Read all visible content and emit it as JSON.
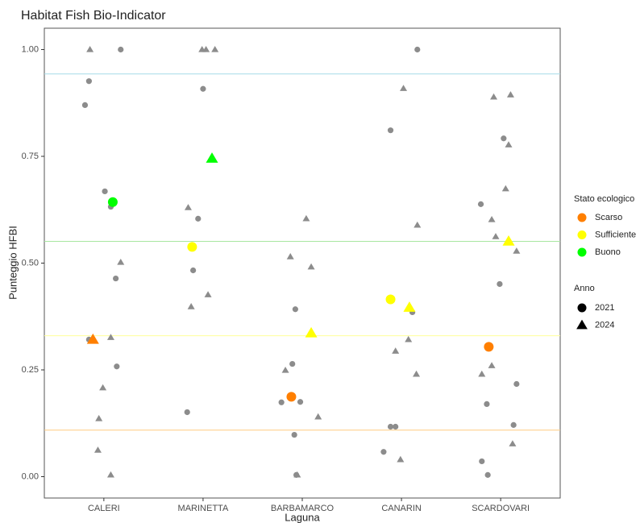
{
  "chart_data": {
    "type": "scatter",
    "title": "Habitat Fish Bio-Indicator",
    "x_label": "Laguna",
    "y_label": "Punteggio HFBI",
    "xlim": [
      0.4,
      5.6
    ],
    "ylim": [
      -0.05,
      1.05
    ],
    "xticks": [
      {
        "value": 1,
        "label": "CALERI"
      },
      {
        "value": 2,
        "label": "MARINETTA"
      },
      {
        "value": 3,
        "label": "BARBAMARCO"
      },
      {
        "value": 4,
        "label": "CANARIN"
      },
      {
        "value": 5,
        "label": "SCARDOVARI"
      }
    ],
    "yticks": [
      {
        "value": 0,
        "label": "0.00"
      },
      {
        "value": 0.25,
        "label": "0.25"
      },
      {
        "value": 0.5,
        "label": "0.50"
      },
      {
        "value": 0.75,
        "label": "0.75"
      },
      {
        "value": 1,
        "label": "1.00"
      }
    ],
    "hlines": [
      {
        "value": 0.943,
        "color": "#a6dbe8"
      },
      {
        "value": 0.551,
        "color": "#a8e6a0"
      },
      {
        "value": 0.33,
        "color": "#ffff99"
      },
      {
        "value": 0.109,
        "color": "#ffcc80"
      }
    ],
    "series": [
      {
        "color": "#8c8c8c",
        "shape": "circle",
        "x": [
          0.81,
          0.85,
          1.01,
          1.07,
          1.12,
          1.13,
          0.85,
          1.17,
          2.0,
          1.95,
          1.9,
          1.84,
          2.93,
          2.9,
          2.79,
          2.98,
          2.92,
          2.94,
          4.16,
          3.89,
          4.11,
          3.89,
          3.94,
          3.82,
          4.8,
          5.03,
          4.99,
          5.16,
          4.86,
          5.13,
          4.81,
          4.87
        ],
        "y": [
          0.87,
          0.926,
          0.668,
          0.632,
          0.464,
          0.258,
          0.321,
          1.0,
          0.908,
          0.604,
          0.483,
          0.151,
          0.392,
          0.264,
          0.174,
          0.175,
          0.098,
          0.004,
          1.0,
          0.811,
          0.385,
          0.117,
          0.117,
          0.058,
          0.638,
          0.792,
          0.451,
          0.217,
          0.17,
          0.121,
          0.036,
          0.004
        ]
      },
      {
        "color": "#8c8c8c",
        "shape": "triangle",
        "x": [
          0.86,
          1.17,
          1.07,
          0.99,
          0.95,
          0.94,
          1.07,
          1.99,
          2.03,
          2.12,
          1.85,
          1.88,
          2.05,
          3.04,
          2.88,
          3.09,
          2.83,
          3.16,
          2.95,
          4.02,
          4.16,
          4.07,
          3.94,
          4.15,
          3.99,
          4.93,
          5.1,
          5.08,
          5.05,
          4.91,
          4.95,
          5.16,
          4.91,
          4.81,
          5.12
        ],
        "y": [
          1.0,
          0.502,
          0.326,
          0.208,
          0.136,
          0.062,
          0.004,
          1.0,
          1.0,
          1.0,
          0.63,
          0.398,
          0.426,
          0.604,
          0.515,
          0.491,
          0.249,
          0.14,
          0.004,
          0.909,
          0.589,
          0.321,
          0.294,
          0.24,
          0.04,
          0.889,
          0.894,
          0.777,
          0.674,
          0.602,
          0.562,
          0.528,
          0.26,
          0.24,
          0.077
        ]
      },
      {
        "color": "#ff7f00",
        "shape": "circle",
        "highlight": true,
        "x": [
          2.89,
          4.88
        ],
        "y": [
          0.187,
          0.304
        ]
      },
      {
        "color": "#ff7f00",
        "shape": "triangle",
        "highlight": true,
        "x": [
          0.89
        ],
        "y": [
          0.321
        ]
      },
      {
        "color": "#ffff00",
        "shape": "circle",
        "highlight": true,
        "x": [
          1.89,
          3.89
        ],
        "y": [
          0.538,
          0.415
        ]
      },
      {
        "color": "#ffff00",
        "shape": "triangle",
        "highlight": true,
        "x": [
          3.09,
          4.08,
          5.08
        ],
        "y": [
          0.336,
          0.396,
          0.551
        ]
      },
      {
        "color": "#00ff00",
        "shape": "circle",
        "highlight": true,
        "x": [
          1.09
        ],
        "y": [
          0.643
        ]
      },
      {
        "color": "#00ff00",
        "shape": "triangle",
        "highlight": true,
        "x": [
          2.09
        ],
        "y": [
          0.745
        ]
      }
    ],
    "legend": {
      "color_title": "Stato ecologico",
      "colors": [
        {
          "name": "Scarso",
          "color": "#ff7f00"
        },
        {
          "name": "Sufficiente",
          "color": "#ffff00"
        },
        {
          "name": "Buono",
          "color": "#00ff00"
        }
      ],
      "shape_title": "Anno",
      "shapes": [
        {
          "name": "2021",
          "shape": "circle"
        },
        {
          "name": "2024",
          "shape": "triangle"
        }
      ]
    }
  }
}
